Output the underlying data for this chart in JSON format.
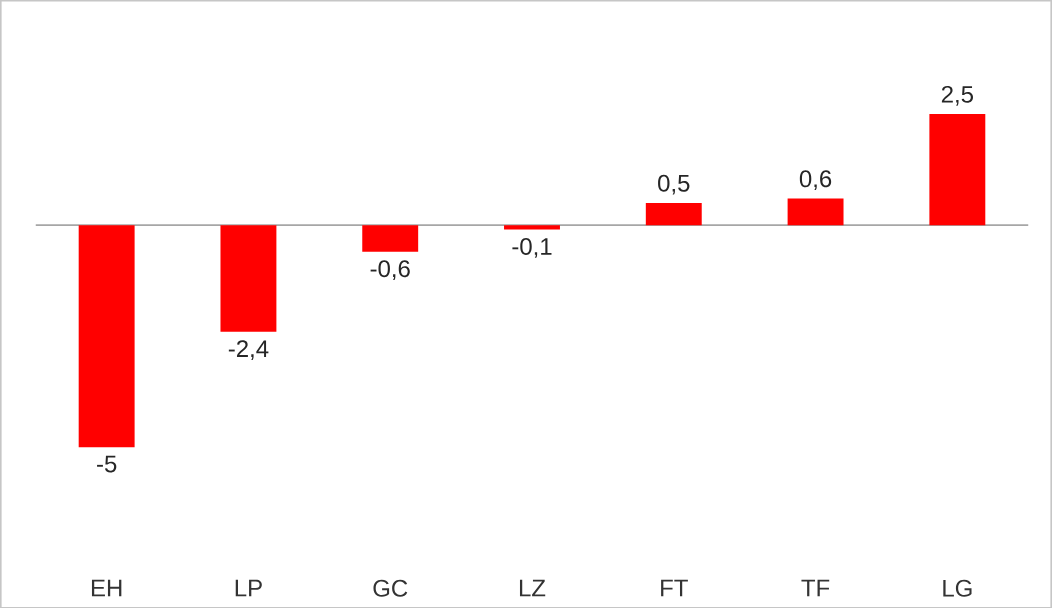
{
  "chart_data": {
    "type": "bar",
    "categories": [
      "EH",
      "LP",
      "GC",
      "LZ",
      "FT",
      "TF",
      "LG"
    ],
    "values": [
      -5,
      -2.4,
      -0.6,
      -0.1,
      0.5,
      0.6,
      2.5
    ],
    "value_labels": [
      "-5",
      "-2,4",
      "-0,6",
      "-0,1",
      "0,5",
      "0,6",
      "2,5"
    ],
    "color": "#ff0000"
  }
}
